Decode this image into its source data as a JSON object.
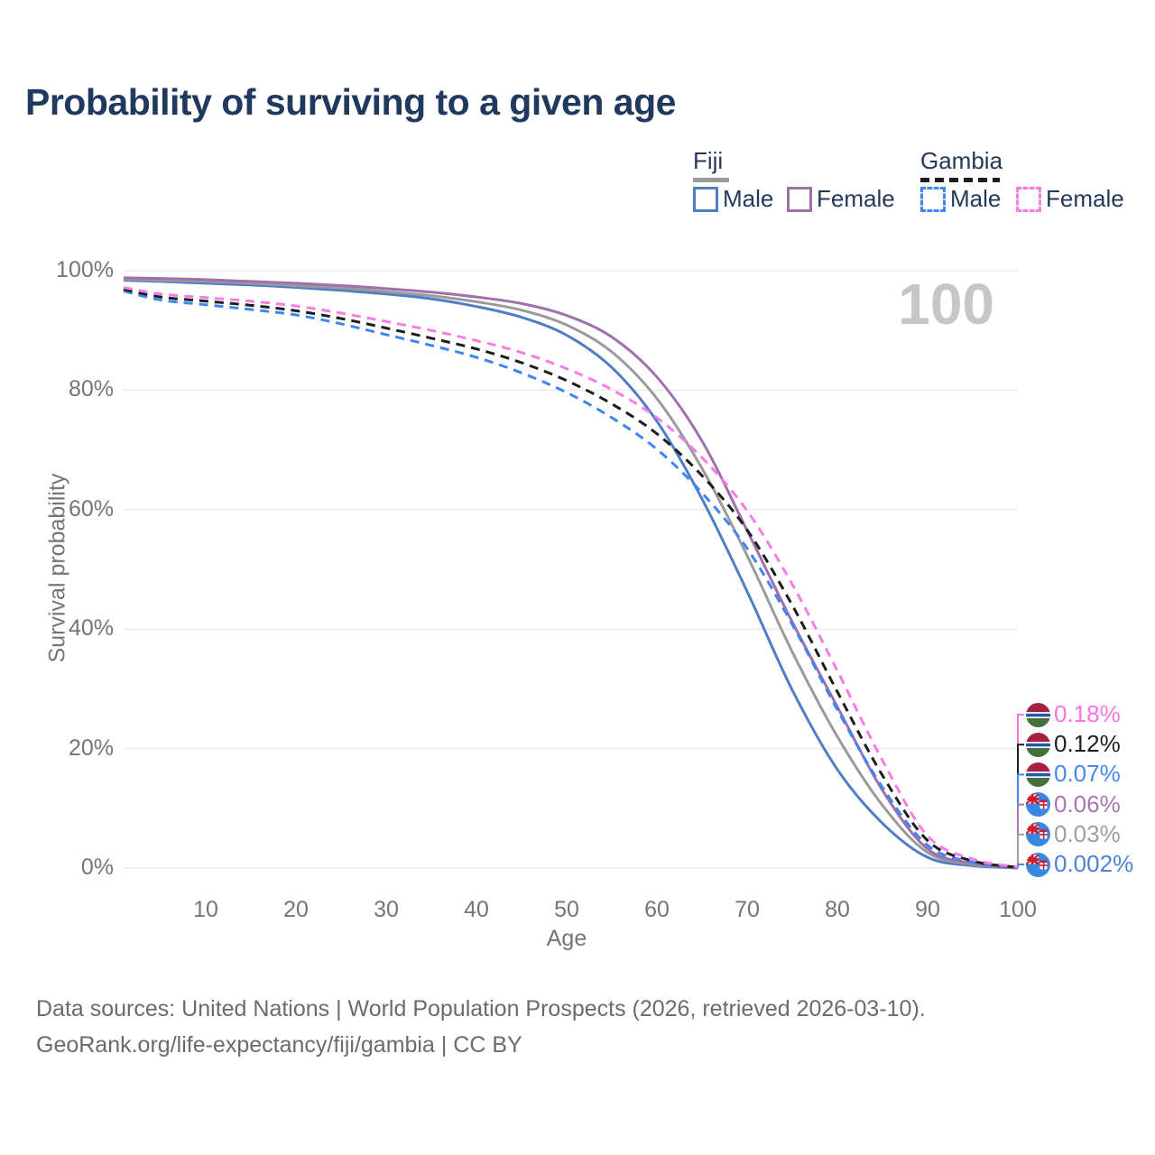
{
  "title": "Probability of surviving to a given age",
  "watermark": "100",
  "legend": {
    "fiji_label": "Fiji",
    "gambia_label": "Gambia",
    "fiji_male_label": "Male",
    "fiji_female_label": "Female",
    "gambia_male_label": "Male",
    "gambia_female_label": "Female",
    "fiji_underline_color": "#9a9a9a",
    "gambia_underline_color": "#1d1d1d"
  },
  "axes": {
    "y_label": "Survival probability",
    "x_label": "Age",
    "y_ticks": [
      "100%",
      "80%",
      "60%",
      "40%",
      "20%",
      "0%"
    ],
    "x_ticks": [
      "10",
      "20",
      "30",
      "40",
      "50",
      "60",
      "70",
      "80",
      "90",
      "100"
    ]
  },
  "footer": {
    "line1": "Data sources: United Nations | World Population Prospects (2026, retrieved 2026-03-10).",
    "line2": "GeoRank.org/life-expectancy/fiji/gambia | CC BY"
  },
  "colors": {
    "grid": "#ebebeb",
    "tick_text": "#757575",
    "title_text": "#1f3a5e",
    "footer_text": "#6b6b6b",
    "watermark_text": "#c6c6c6"
  },
  "chart_data": {
    "type": "line",
    "title": "Probability of surviving to a given age",
    "xlabel": "Age",
    "ylabel": "Survival probability",
    "xlim": [
      0,
      100
    ],
    "ylim": [
      0,
      100
    ],
    "grid": "horizontal",
    "legend_position": "top-right",
    "hover_age": 100,
    "ages": [
      0,
      5,
      10,
      15,
      20,
      25,
      30,
      35,
      40,
      45,
      50,
      55,
      60,
      65,
      70,
      75,
      80,
      85,
      90,
      95,
      100
    ],
    "series": [
      {
        "name": "Fiji Male",
        "country": "Fiji",
        "sex": "male",
        "style": "solid",
        "color": "#4d7ec6",
        "flag": "fiji",
        "end_label": "0.002%",
        "end_label_color": "#4e82d8",
        "end_label_row": 5,
        "values": [
          98.4,
          98.2,
          97.9,
          97.6,
          97.2,
          96.7,
          96.1,
          95.3,
          94.0,
          92.2,
          89.2,
          83.8,
          74.8,
          61.8,
          46.3,
          29.8,
          16.5,
          7.5,
          1.8,
          0.4,
          0.002
        ]
      },
      {
        "name": "Fiji Both sexes",
        "country": "Fiji",
        "sex": "both",
        "style": "solid",
        "color": "#9a9a9a",
        "flag": "fiji",
        "end_label": "0.03%",
        "end_label_color": "#9e9e9e",
        "end_label_row": 4,
        "values": [
          98.6,
          98.4,
          98.2,
          97.9,
          97.5,
          97.1,
          96.5,
          95.8,
          94.8,
          93.4,
          90.9,
          86.4,
          78.6,
          66.9,
          52.3,
          36.2,
          22.0,
          10.5,
          2.6,
          0.6,
          0.03
        ]
      },
      {
        "name": "Fiji Female",
        "country": "Fiji",
        "sex": "female",
        "style": "solid",
        "color": "#a06fad",
        "flag": "fiji",
        "end_label": "0.06%",
        "end_label_color": "#a874b2",
        "end_label_row": 3,
        "values": [
          98.8,
          98.7,
          98.5,
          98.2,
          97.9,
          97.5,
          97.0,
          96.4,
          95.6,
          94.5,
          92.5,
          88.9,
          82.2,
          71.5,
          56.5,
          41.2,
          27.0,
          13.0,
          3.2,
          0.8,
          0.06
        ]
      },
      {
        "name": "Gambia Male",
        "country": "Gambia",
        "sex": "male",
        "style": "dashed",
        "color": "#3e86f0",
        "flag": "gambia",
        "end_label": "0.07%",
        "end_label_color": "#4489f0",
        "end_label_row": 2,
        "values": [
          96.6,
          95.1,
          94.3,
          93.5,
          92.6,
          91.1,
          89.3,
          87.5,
          85.5,
          82.9,
          79.6,
          75.4,
          70.1,
          62.8,
          53.5,
          40.8,
          26.5,
          13.5,
          3.8,
          1.0,
          0.07
        ]
      },
      {
        "name": "Gambia Both sexes",
        "country": "Gambia",
        "sex": "both",
        "style": "dashed",
        "color": "#1d1d1d",
        "flag": "gambia",
        "end_label": "0.12%",
        "end_label_color": "#1f1f1f",
        "end_label_row": 1,
        "values": [
          96.9,
          95.6,
          94.9,
          94.2,
          93.3,
          92.0,
          90.4,
          88.7,
          86.9,
          84.6,
          81.6,
          77.7,
          72.7,
          65.7,
          56.6,
          44.0,
          29.5,
          15.5,
          4.6,
          1.2,
          0.12
        ]
      },
      {
        "name": "Gambia Female",
        "country": "Gambia",
        "sex": "female",
        "style": "dashed",
        "color": "#f97ce5",
        "flag": "gambia",
        "end_label": "0.18%",
        "end_label_color": "#f973e3",
        "end_label_row": 0,
        "values": [
          97.2,
          96.1,
          95.5,
          94.9,
          94.1,
          92.9,
          91.5,
          90.0,
          88.3,
          86.3,
          83.6,
          80.1,
          75.4,
          68.7,
          59.8,
          47.5,
          33.0,
          18.0,
          5.4,
          1.5,
          0.18
        ]
      }
    ]
  }
}
